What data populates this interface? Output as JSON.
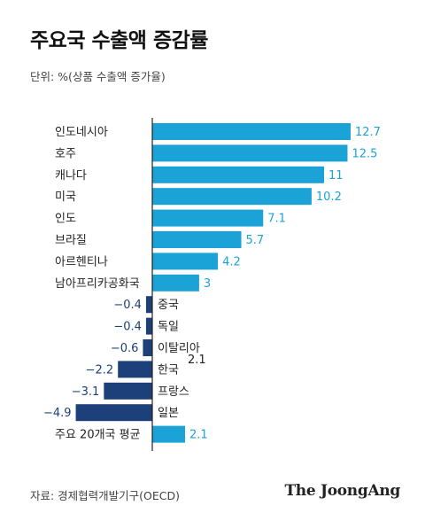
{
  "title": "주요국 수출액 증감률",
  "subtitle": "단위: %(상품 수출액 증가율)",
  "source": "자료: 경제협력개발기구(OECD)",
  "brand": "The JoongAng",
  "colors": {
    "positive": "#1ba3d8",
    "negative": "#1d3f7a",
    "axis": "#222222",
    "label": "#222222",
    "positive_value": "#1ba3d8",
    "negative_value": "#1d3f7a"
  },
  "chart_data": {
    "type": "bar",
    "orientation": "horizontal",
    "categories": [
      "인도네시아",
      "호주",
      "캐나다",
      "미국",
      "인도",
      "브라질",
      "아르헨티나",
      "남아프리카공화국",
      "중국",
      "독일",
      "이탈리아",
      "한국",
      "프랑스",
      "일본",
      "주요 20개국 평균"
    ],
    "values": [
      12.7,
      12.5,
      11,
      10.2,
      7.1,
      5.7,
      4.2,
      3,
      -0.4,
      -0.4,
      -0.6,
      -2.2,
      -3.1,
      -4.9,
      2.1
    ],
    "value_labels": [
      "12.7",
      "12.5",
      "11",
      "10.2",
      "7.1",
      "5.7",
      "4.2",
      "3",
      "−0.4",
      "−0.4",
      "−0.6",
      "−2.2",
      "−3.1",
      "−4.9",
      "2.1"
    ],
    "annotations": [
      "2.1"
    ],
    "title": "주요국 수출액 증감률",
    "xlabel": "",
    "ylabel": "",
    "xlim": [
      -4.9,
      12.7
    ],
    "grid": false,
    "legend": "none"
  }
}
